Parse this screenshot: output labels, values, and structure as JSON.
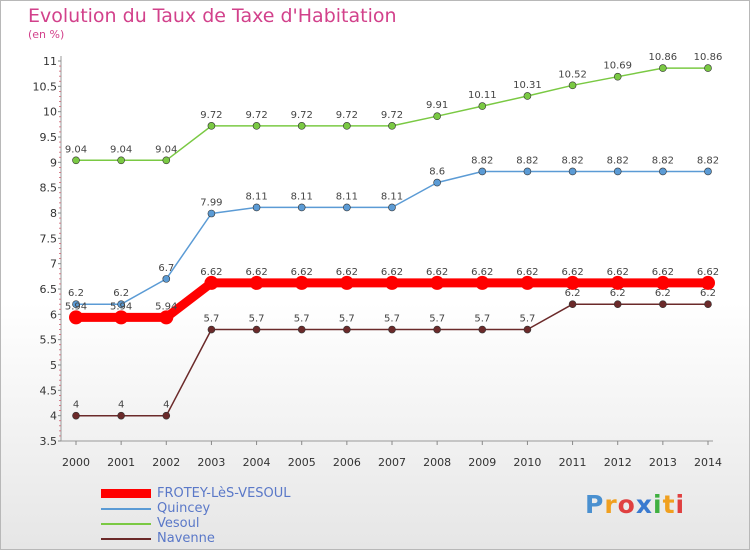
{
  "title": "Evolution du Taux de Taxe d'Habitation",
  "subtitle": "(en %)",
  "logo": {
    "text": "Proxiti",
    "letters": [
      "P",
      "r",
      "o",
      "x",
      "i",
      "t",
      "i"
    ],
    "colors": [
      "#4a90d0",
      "#f0a020",
      "#e04040",
      "#3a7ad0",
      "#40b040",
      "#f0a020",
      "#e04040"
    ]
  },
  "chart_data": {
    "type": "line",
    "x": [
      "2000",
      "2001",
      "2002",
      "2003",
      "2004",
      "2005",
      "2006",
      "2007",
      "2008",
      "2009",
      "2010",
      "2011",
      "2012",
      "2013",
      "2014"
    ],
    "ylim": [
      3.5,
      11
    ],
    "yticks": [
      "3.5",
      "4",
      "4.5",
      "5",
      "5.5",
      "6",
      "6.5",
      "7",
      "7.5",
      "8",
      "8.5",
      "9",
      "9.5",
      "10",
      "10.5",
      "11"
    ],
    "grid": false,
    "legend_position": "bottom-left",
    "series": [
      {
        "name": "FROTEY-LèS-VESOUL",
        "color": "#ff0000",
        "width": 9,
        "marker": 7,
        "values": [
          5.94,
          5.94,
          5.94,
          6.62,
          6.62,
          6.62,
          6.62,
          6.62,
          6.62,
          6.62,
          6.62,
          6.62,
          6.62,
          6.62,
          6.62
        ],
        "labels": [
          "5.94",
          "5.94",
          "5.94",
          "6.62",
          "6.62",
          "6.62",
          "6.62",
          "6.62",
          "6.62",
          "6.62",
          "6.62",
          "6.62",
          "6.62",
          "6.62",
          "6.62"
        ]
      },
      {
        "name": "Quincey",
        "color": "#5b9bd5",
        "width": 1.5,
        "marker": 3.5,
        "values": [
          6.2,
          6.2,
          6.7,
          7.99,
          8.11,
          8.11,
          8.11,
          8.11,
          8.6,
          8.82,
          8.82,
          8.82,
          8.82,
          8.82,
          8.82
        ],
        "labels": [
          "6.2",
          "6.2",
          "6.7",
          "7.99",
          "8.11",
          "8.11",
          "8.11",
          "8.11",
          "8.6",
          "8.82",
          "8.82",
          "8.82",
          "8.82",
          "8.82",
          "8.82"
        ]
      },
      {
        "name": "Vesoul",
        "color": "#7ac943",
        "width": 1.5,
        "marker": 3.5,
        "values": [
          9.04,
          9.04,
          9.04,
          9.72,
          9.72,
          9.72,
          9.72,
          9.72,
          9.91,
          10.11,
          10.31,
          10.52,
          10.69,
          10.86,
          10.86
        ],
        "labels": [
          "9.04",
          "9.04",
          "9.04",
          "9.72",
          "9.72",
          "9.72",
          "9.72",
          "9.72",
          "9.91",
          "10.11",
          "10.31",
          "10.52",
          "10.69",
          "10.86",
          "10.86"
        ]
      },
      {
        "name": "Navenne",
        "color": "#6b2a2a",
        "width": 1.5,
        "marker": 3.5,
        "values": [
          4,
          4,
          4,
          5.7,
          5.7,
          5.7,
          5.7,
          5.7,
          5.7,
          5.7,
          5.7,
          6.2,
          6.2,
          6.2,
          6.2
        ],
        "labels": [
          "4",
          "4",
          "4",
          "5.7",
          "5.7",
          "5.7",
          "5.7",
          "5.7",
          "5.7",
          "5.7",
          "5.7",
          "6.2",
          "6.2",
          "6.2",
          "6.2"
        ]
      }
    ]
  }
}
